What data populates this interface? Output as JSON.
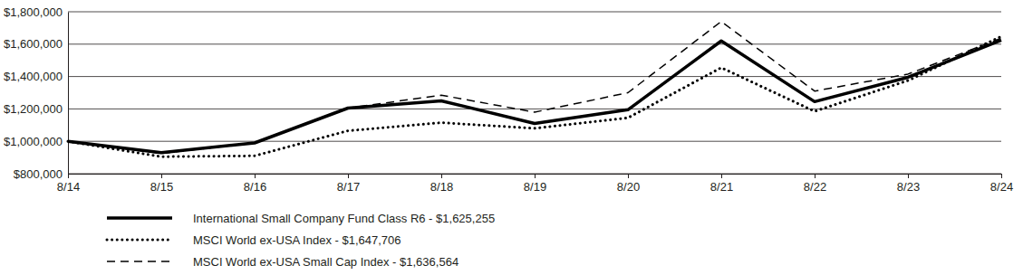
{
  "chart_data": {
    "type": "line",
    "categories": [
      "8/14",
      "8/15",
      "8/16",
      "8/17",
      "8/18",
      "8/19",
      "8/20",
      "8/21",
      "8/22",
      "8/23",
      "8/24"
    ],
    "series": [
      {
        "name": "International Small Company Fund Class R6 - $1,625,255",
        "color": "#000000",
        "line_style": "solid",
        "values": [
          1000000,
          930000,
          990000,
          1205000,
          1250000,
          1110000,
          1195000,
          1620000,
          1245000,
          1395000,
          1625255
        ]
      },
      {
        "name": "MSCI World ex-USA Index - $1,647,706",
        "color": "#000000",
        "line_style": "dotted",
        "values": [
          1000000,
          905000,
          910000,
          1065000,
          1115000,
          1080000,
          1145000,
          1455000,
          1185000,
          1375000,
          1647706
        ]
      },
      {
        "name": "MSCI World ex-USA Small Cap Index - $1,636,564",
        "color": "#000000",
        "line_style": "dashed",
        "values": [
          1000000,
          925000,
          990000,
          1205000,
          1285000,
          1180000,
          1300000,
          1740000,
          1310000,
          1415000,
          1636564
        ]
      }
    ],
    "ylim": [
      800000,
      1800000
    ],
    "yticks": [
      {
        "value": 800000,
        "label": "$800,000"
      },
      {
        "value": 1000000,
        "label": "$1,000,000"
      },
      {
        "value": 1200000,
        "label": "$1,200,000"
      },
      {
        "value": 1400000,
        "label": "$1,400,000"
      },
      {
        "value": 1600000,
        "label": "$1,600,000"
      },
      {
        "value": 1800000,
        "label": "$1,800,000"
      }
    ],
    "grid": true,
    "legend": "bottom"
  }
}
